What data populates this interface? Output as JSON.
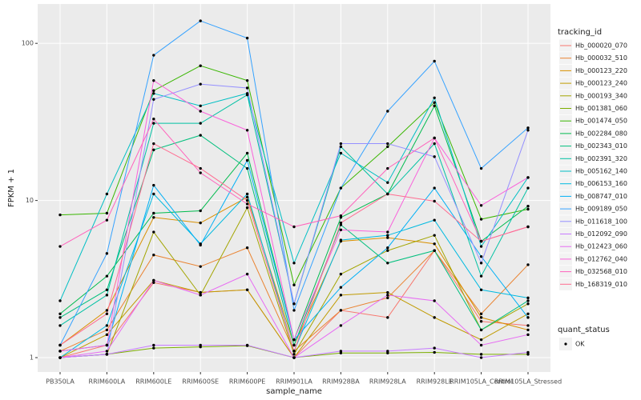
{
  "chart_data": {
    "type": "line",
    "x_label": "sample_name",
    "y_label": "FPKM + 1",
    "log_y": true,
    "grid": true,
    "ylim": [
      0.81,
      178
    ],
    "yticks": [
      1,
      10,
      100
    ],
    "categories": [
      "PB350LA",
      "RRIM600LA",
      "RRIM600LE",
      "RRIM600SE",
      "RRIM600PE",
      "RRIM901LA",
      "RRIM928BA",
      "RRIM928LA",
      "RRIM928LE",
      "RRIM105LA_Control",
      "RRIM105LA_Stressed"
    ],
    "legend_title": "tracking_id",
    "series": [
      {
        "name": "Hb_000020_070",
        "color": "#F8766D",
        "values": [
          1.0,
          1.2,
          3.0,
          2.6,
          2.7,
          1.0,
          2.0,
          1.8,
          4.8,
          1.7,
          1.6
        ]
      },
      {
        "name": "Hb_000032_510",
        "color": "#EA8331",
        "values": [
          1.1,
          1.5,
          4.5,
          3.8,
          5.0,
          1.1,
          2.0,
          2.4,
          4.8,
          1.9,
          3.9
        ]
      },
      {
        "name": "Hb_000123_220",
        "color": "#D89000",
        "values": [
          1.2,
          2.0,
          7.8,
          7.2,
          10.5,
          1.2,
          5.5,
          5.8,
          5.3,
          1.8,
          1.5
        ]
      },
      {
        "name": "Hb_000123_240",
        "color": "#C09B00",
        "values": [
          1.0,
          1.4,
          3.1,
          2.6,
          2.7,
          1.0,
          2.5,
          2.6,
          1.8,
          1.3,
          1.9
        ]
      },
      {
        "name": "Hb_000193_340",
        "color": "#A3A500",
        "values": [
          1.0,
          1.05,
          6.3,
          2.5,
          9.0,
          1.05,
          3.4,
          4.8,
          6.0,
          1.5,
          2.2
        ]
      },
      {
        "name": "Hb_001381_060",
        "color": "#7CAE00",
        "values": [
          1.0,
          1.05,
          1.15,
          1.17,
          1.19,
          1.0,
          1.07,
          1.07,
          1.08,
          1.05,
          1.05
        ]
      },
      {
        "name": "Hb_001474_050",
        "color": "#39B600",
        "values": [
          8.1,
          8.3,
          50,
          72,
          58,
          2.9,
          12,
          22,
          42,
          7.6,
          8.8
        ]
      },
      {
        "name": "Hb_002284_080",
        "color": "#00BB4E",
        "values": [
          1.9,
          3.3,
          8.3,
          8.6,
          20,
          1.3,
          7.8,
          11,
          40,
          5.5,
          9.2
        ]
      },
      {
        "name": "Hb_002343_010",
        "color": "#00BF7D",
        "values": [
          1.8,
          2.7,
          21,
          26,
          16,
          1.2,
          7.0,
          4.0,
          4.8,
          1.5,
          2.3
        ]
      },
      {
        "name": "Hb_002391_320",
        "color": "#00C1A3",
        "values": [
          1.6,
          2.5,
          31,
          31,
          47,
          2.2,
          22,
          11,
          23,
          3.3,
          12
        ]
      },
      {
        "name": "Hb_005162_140",
        "color": "#00BFC4",
        "values": [
          2.3,
          11,
          48,
          40,
          48,
          4.0,
          20,
          13,
          45,
          5.1,
          14
        ]
      },
      {
        "name": "Hb_006153_160",
        "color": "#00BAE0",
        "values": [
          1.0,
          1.6,
          11,
          5.3,
          11,
          1.1,
          5.6,
          6.0,
          7.5,
          2.7,
          2.4
        ]
      },
      {
        "name": "Hb_008747_010",
        "color": "#00B0F6",
        "values": [
          1.1,
          1.2,
          12.5,
          5.2,
          18,
          1.3,
          2.8,
          5.0,
          12,
          4.4,
          1.8
        ]
      },
      {
        "name": "Hb_009189_050",
        "color": "#35A2FF",
        "values": [
          1.2,
          4.6,
          84,
          139,
          108,
          2.0,
          12,
          37,
          77,
          16,
          29
        ]
      },
      {
        "name": "Hb_011618_100",
        "color": "#9590FF",
        "values": [
          1.0,
          1.05,
          44,
          55,
          52,
          2.2,
          23,
          23,
          19,
          4.0,
          28
        ]
      },
      {
        "name": "Hb_012092_090",
        "color": "#C77CFF",
        "values": [
          1.0,
          1.05,
          1.2,
          1.2,
          1.2,
          1.0,
          1.1,
          1.1,
          1.15,
          1.0,
          1.08
        ]
      },
      {
        "name": "Hb_012423_060",
        "color": "#E76BF3",
        "values": [
          1.0,
          1.1,
          3.1,
          2.5,
          3.4,
          1.0,
          1.6,
          2.5,
          2.3,
          1.2,
          1.4
        ]
      },
      {
        "name": "Hb_012762_040",
        "color": "#FA62DB",
        "values": [
          1.1,
          1.2,
          58,
          37,
          28,
          1.3,
          6.5,
          6.3,
          25,
          9.3,
          14
        ]
      },
      {
        "name": "Hb_032568_010",
        "color": "#FF62BC",
        "values": [
          5.1,
          7.5,
          33,
          15,
          9.5,
          6.8,
          8.0,
          16,
          25,
          5.5,
          6.8
        ]
      },
      {
        "name": "Hb_168319_010",
        "color": "#FF6C91",
        "values": [
          1.2,
          1.9,
          23,
          16,
          10,
          1.1,
          7.2,
          11,
          9.9,
          5.5,
          6.8
        ]
      }
    ],
    "quant_status": {
      "title": "quant_status",
      "labels": [
        "OK"
      ]
    }
  }
}
